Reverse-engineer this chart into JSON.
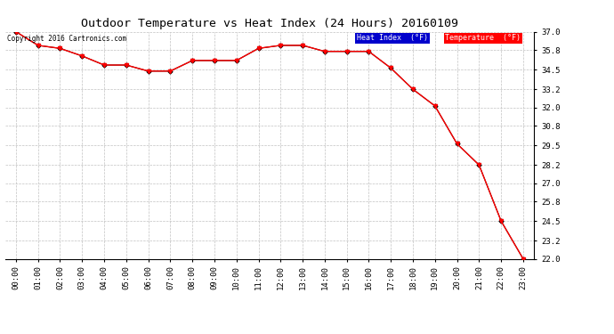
{
  "title": "Outdoor Temperature vs Heat Index (24 Hours) 20160109",
  "copyright": "Copyright 2016 Cartronics.com",
  "x_labels": [
    "00:00",
    "01:00",
    "02:00",
    "03:00",
    "04:00",
    "05:00",
    "06:00",
    "07:00",
    "08:00",
    "09:00",
    "10:00",
    "11:00",
    "12:00",
    "13:00",
    "14:00",
    "15:00",
    "16:00",
    "17:00",
    "18:00",
    "19:00",
    "20:00",
    "21:00",
    "22:00",
    "23:00"
  ],
  "temperature_data": [
    37.0,
    36.1,
    35.9,
    35.4,
    34.8,
    34.8,
    34.4,
    34.4,
    35.1,
    35.1,
    35.1,
    35.9,
    36.1,
    36.1,
    35.7,
    35.7,
    35.7,
    34.6,
    33.2,
    32.1,
    29.6,
    28.2,
    24.5,
    22.0
  ],
  "heat_index_data": [
    37.0,
    36.1,
    35.9,
    35.4,
    34.8,
    34.8,
    34.4,
    34.4,
    35.1,
    35.1,
    35.1,
    35.9,
    36.1,
    36.1,
    35.7,
    35.7,
    35.7,
    34.6,
    33.2,
    32.1,
    29.6,
    28.2,
    24.5,
    22.0
  ],
  "ylim_min": 22.0,
  "ylim_max": 37.0,
  "yticks": [
    22.0,
    23.2,
    24.5,
    25.8,
    27.0,
    28.2,
    29.5,
    30.8,
    32.0,
    33.2,
    34.5,
    35.8,
    37.0
  ],
  "temp_color": "#ff0000",
  "heat_index_color": "#000000",
  "bg_color": "#ffffff",
  "grid_color": "#bbbbbb",
  "title_fontsize": 9.5,
  "tick_fontsize": 6.5,
  "legend_heat_bg": "#0000cc",
  "legend_temp_bg": "#ff0000",
  "legend_heat_text": "Heat Index  (°F)",
  "legend_temp_text": "Temperature  (°F)"
}
